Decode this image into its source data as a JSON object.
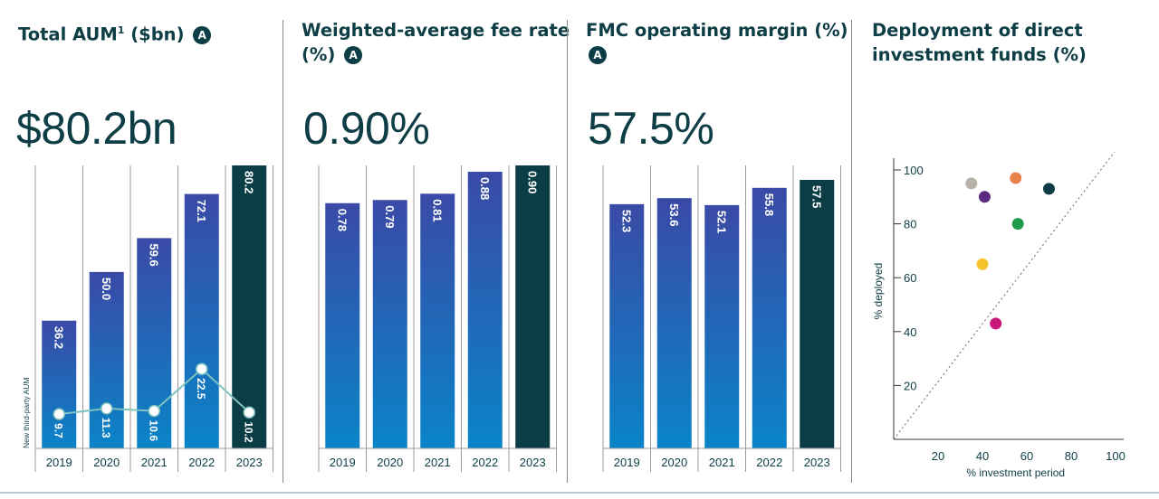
{
  "panels": [
    {
      "title": "Total AUM",
      "superscript": "1",
      "title_suffix": " ($bn)",
      "badge": "A",
      "headline": "$80.2bn"
    },
    {
      "title": "Weighted-average fee rate (%)",
      "badge": "A",
      "headline": "0.90%"
    },
    {
      "title": "FMC operating margin (%)",
      "badge": "A",
      "headline": "57.5%"
    },
    {
      "title": "Deployment of direct investment funds (%)"
    }
  ],
  "colors": {
    "bar_top": "#3a4aa6",
    "bar_bottom": "#0a84c8",
    "highlight": "#0a3d45",
    "line": "#7fc3c0",
    "text": "#0d3d45"
  },
  "chart_data": [
    {
      "type": "bar",
      "categories": [
        "2019",
        "2020",
        "2021",
        "2022",
        "2023"
      ],
      "series": [
        {
          "values": [
            36.2,
            50.0,
            59.6,
            72.1,
            80.2
          ],
          "labels": [
            "36.2",
            "50.0",
            "59.6",
            "72.1",
            "80.2"
          ]
        }
      ],
      "line_series": {
        "name": "New third-party AUM",
        "values": [
          9.7,
          11.3,
          10.6,
          22.5,
          10.2
        ],
        "labels": [
          "9.7",
          "11.3",
          "10.6",
          "22.5",
          "10.2"
        ]
      },
      "ylim": [
        0,
        80.2
      ]
    },
    {
      "type": "bar",
      "categories": [
        "2019",
        "2020",
        "2021",
        "2022",
        "2023"
      ],
      "series": [
        {
          "values": [
            0.78,
            0.79,
            0.81,
            0.88,
            0.9
          ],
          "labels": [
            "0.78",
            "0.79",
            "0.81",
            "0.88",
            "0.90"
          ]
        }
      ],
      "ylim": [
        0,
        0.9
      ]
    },
    {
      "type": "bar",
      "categories": [
        "2019",
        "2020",
        "2021",
        "2022",
        "2023"
      ],
      "series": [
        {
          "values": [
            52.3,
            53.6,
            52.1,
            55.8,
            57.5
          ],
          "labels": [
            "52.3",
            "53.6",
            "52.1",
            "55.8",
            "57.5"
          ]
        }
      ],
      "ylim": [
        0,
        60.6
      ]
    },
    {
      "type": "scatter",
      "xlabel": "% investment period",
      "ylabel": "% deployed",
      "x_ticks": [
        "20",
        "40",
        "60",
        "80",
        "100"
      ],
      "y_ticks": [
        "20",
        "40",
        "60",
        "80",
        "100"
      ],
      "xlim": [
        0,
        100
      ],
      "ylim": [
        0,
        105
      ],
      "diagonal": true,
      "points": [
        {
          "x": 35,
          "y": 95,
          "color": "#b8b1aa"
        },
        {
          "x": 41,
          "y": 90,
          "color": "#5b2a80"
        },
        {
          "x": 55,
          "y": 97,
          "color": "#e8824a"
        },
        {
          "x": 70,
          "y": 93,
          "color": "#0d3d45"
        },
        {
          "x": 56,
          "y": 80,
          "color": "#1f9a4a"
        },
        {
          "x": 40,
          "y": 65,
          "color": "#f5c22a"
        },
        {
          "x": 46,
          "y": 43,
          "color": "#c8197a"
        }
      ]
    }
  ]
}
